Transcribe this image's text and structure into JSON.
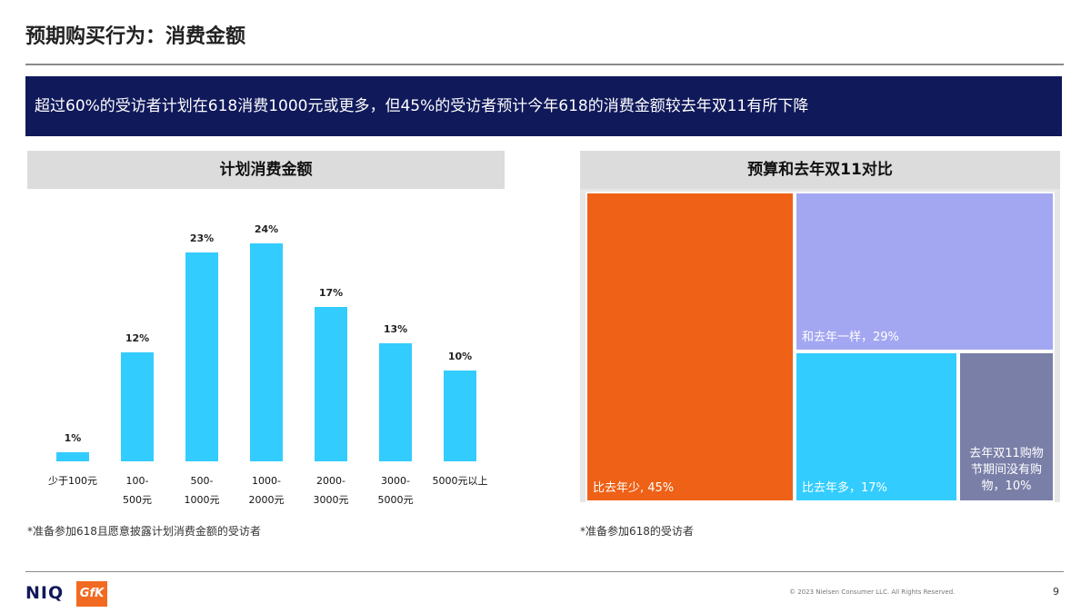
{
  "page_title": "预期购买行为：消费金额",
  "banner_text": "超过60%的受访者计划在618消费1000元或更多，但45%的受访者预计今年618的消费金额较去年双11有所下降",
  "left_panel": {
    "header": "计划消费金额",
    "footnote": "*准备参加618且愿意披露计划消费金额的受访者"
  },
  "right_panel": {
    "header": "预算和去年双11对比",
    "footnote": "*准备参加618的受访者"
  },
  "chart_data": [
    {
      "type": "bar",
      "title": "计划消费金额",
      "categories": [
        "少于100元",
        "100-500元",
        "500-1000元",
        "1000-2000元",
        "2000-3000元",
        "3000-5000元",
        "5000元以上"
      ],
      "category_lines": [
        [
          "少于100元"
        ],
        [
          "100-",
          "500元"
        ],
        [
          "500-",
          "1000元"
        ],
        [
          "1000-",
          "2000元"
        ],
        [
          "2000-",
          "3000元"
        ],
        [
          "3000-",
          "5000元"
        ],
        [
          "5000元以上"
        ]
      ],
      "values": [
        1,
        12,
        23,
        24,
        17,
        13,
        10
      ],
      "value_labels": [
        "1%",
        "12%",
        "23%",
        "24%",
        "17%",
        "13%",
        "10%"
      ],
      "bar_color": "#33ccff",
      "ylim": [
        0,
        27
      ],
      "grid": false
    },
    {
      "type": "treemap",
      "title": "预算和去年双11对比",
      "items": [
        {
          "label": "比去年少, 45%",
          "value": 45,
          "color": "#ee6116"
        },
        {
          "label": "和去年一样，29%",
          "value": 29,
          "color": "#a3a7f2"
        },
        {
          "label": "比去年多，17%",
          "value": 17,
          "color": "#33ccff"
        },
        {
          "label": "去年双11购物节期间没有购物，10%",
          "value": 10,
          "color": "#7a7fa8"
        }
      ]
    }
  ],
  "footer": {
    "logo_niq": "NIQ",
    "logo_gfk": "GfK",
    "copyright": "© 2023 Nielsen Consumer LLC. All Rights Reserved.",
    "page_number": "9"
  }
}
